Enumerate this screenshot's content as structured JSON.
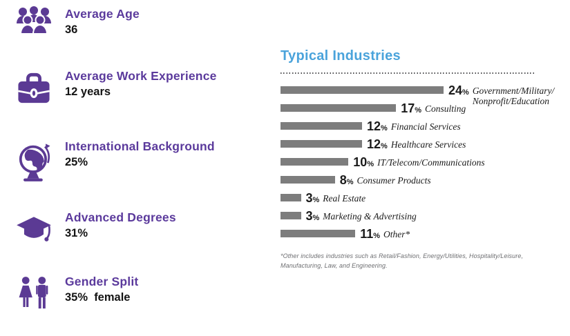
{
  "stats": {
    "accent_color": "#5b3a9c",
    "icon_color": "#5b3a94",
    "items": [
      {
        "icon": "people-group-icon",
        "label": "Average Age",
        "value": "36"
      },
      {
        "icon": "briefcase-icon",
        "label": "Average Work Experience",
        "value": "12 years"
      },
      {
        "icon": "globe-icon",
        "label": "International Background",
        "value": "25%"
      },
      {
        "icon": "graduation-cap-icon",
        "label": "Advanced Degrees",
        "value": "31%"
      },
      {
        "icon": "gender-split-icon",
        "label": "Gender Split",
        "value": "35%  female"
      }
    ]
  },
  "chart_data": {
    "type": "bar",
    "orientation": "horizontal",
    "title": "Typical Industries",
    "title_color": "#4aa3db",
    "bar_color": "#7d7d7d",
    "unit": "%",
    "xlim": [
      0,
      24
    ],
    "grid": false,
    "legend": false,
    "categories": [
      "Government/Military/Nonprofit/Education",
      "Consulting",
      "Financial Services",
      "Healthcare Services",
      "IT/Telecom/Communications",
      "Consumer Products",
      "Real Estate",
      "Marketing & Advertising",
      "Other*"
    ],
    "display_labels": [
      "Government/Military/\nNonprofit/Education",
      "Consulting",
      "Financial Services",
      "Healthcare Services",
      "IT/Telecom/Communications",
      "Consumer Products",
      "Real Estate",
      "Marketing & Advertising",
      "Other*"
    ],
    "values": [
      24,
      17,
      12,
      12,
      10,
      8,
      3,
      3,
      11
    ],
    "footnote": "*Other includes industries such as Retail/Fashion, Energy/Utilities, Hospitality/Leisure, Manufacturing, Law, and Engineering.",
    "footnote_display": "*Other includes industries such as Retail/Fashion, Energy/Utilities, Hospitality/Leisure,\nManufacturing, Law, and Engineering."
  }
}
